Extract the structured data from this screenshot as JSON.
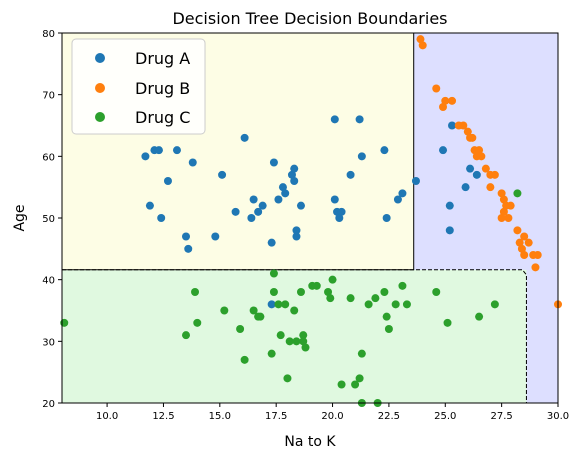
{
  "chart_data": {
    "type": "scatter",
    "title": "Decision Tree Decision Boundaries",
    "xlabel": "Na to K",
    "ylabel": "Age",
    "xlim": [
      8,
      30
    ],
    "ylim": [
      20,
      80
    ],
    "xticks": [
      "10.0",
      "12.5",
      "15.0",
      "17.5",
      "20.0",
      "22.5",
      "25.0",
      "27.5",
      "30.0"
    ],
    "yticks": [
      "20",
      "30",
      "40",
      "50",
      "60",
      "70",
      "80"
    ],
    "legend_position": "top-left",
    "regions": [
      {
        "label": "Drug A region",
        "color": "#dddfff",
        "x": [
          8,
          30
        ],
        "y": [
          20,
          80
        ]
      },
      {
        "label": "Drug C region",
        "color": "#e0f9e0",
        "x": [
          8,
          28.6
        ],
        "y": [
          20,
          41.6
        ]
      },
      {
        "label": "Drug B region",
        "color": "#fdfde5",
        "x": [
          8,
          23.6
        ],
        "y": [
          41.6,
          80
        ]
      }
    ],
    "series": [
      {
        "name": "Drug A",
        "color": "#1f77b4",
        "points": [
          [
            11.7,
            60
          ],
          [
            11.9,
            52
          ],
          [
            12.1,
            61
          ],
          [
            12.3,
            61
          ],
          [
            12.4,
            50
          ],
          [
            12.7,
            56
          ],
          [
            13.1,
            61
          ],
          [
            13.5,
            47
          ],
          [
            13.6,
            45
          ],
          [
            13.8,
            59
          ],
          [
            14.8,
            47
          ],
          [
            15.1,
            57
          ],
          [
            15.7,
            51
          ],
          [
            16.1,
            63
          ],
          [
            16.4,
            50
          ],
          [
            16.5,
            53
          ],
          [
            16.7,
            51
          ],
          [
            16.9,
            52
          ],
          [
            17.3,
            46
          ],
          [
            17.4,
            59
          ],
          [
            17.6,
            53
          ],
          [
            17.8,
            55
          ],
          [
            17.9,
            54
          ],
          [
            18.2,
            57
          ],
          [
            18.3,
            56
          ],
          [
            18.3,
            58
          ],
          [
            18.4,
            47
          ],
          [
            18.4,
            48
          ],
          [
            18.6,
            52
          ],
          [
            20.1,
            66
          ],
          [
            20.1,
            53
          ],
          [
            20.2,
            51
          ],
          [
            20.3,
            50
          ],
          [
            20.4,
            51
          ],
          [
            20.8,
            57
          ],
          [
            21.2,
            66
          ],
          [
            21.3,
            60
          ],
          [
            22.3,
            61
          ],
          [
            22.4,
            50
          ],
          [
            22.9,
            53
          ],
          [
            23.1,
            54
          ],
          [
            23.7,
            56
          ],
          [
            24.9,
            61
          ],
          [
            25.2,
            48
          ],
          [
            25.2,
            52
          ],
          [
            25.3,
            65
          ],
          [
            25.9,
            55
          ],
          [
            26.1,
            58
          ],
          [
            26.4,
            57
          ],
          [
            17.3,
            36
          ]
        ]
      },
      {
        "name": "Drug B",
        "color": "#ff7f0e",
        "points": [
          [
            23.9,
            79
          ],
          [
            24.0,
            78
          ],
          [
            24.6,
            71
          ],
          [
            24.9,
            68
          ],
          [
            25.0,
            69
          ],
          [
            25.3,
            69
          ],
          [
            25.6,
            65
          ],
          [
            25.8,
            65
          ],
          [
            26.0,
            64
          ],
          [
            26.1,
            63
          ],
          [
            26.2,
            63
          ],
          [
            26.3,
            61
          ],
          [
            26.4,
            60
          ],
          [
            26.5,
            61
          ],
          [
            26.6,
            60
          ],
          [
            26.8,
            58
          ],
          [
            27.0,
            57
          ],
          [
            27.0,
            55
          ],
          [
            27.2,
            57
          ],
          [
            27.5,
            54
          ],
          [
            27.6,
            53
          ],
          [
            27.5,
            50
          ],
          [
            27.6,
            51
          ],
          [
            27.7,
            52
          ],
          [
            27.8,
            50
          ],
          [
            27.9,
            52
          ],
          [
            28.2,
            48
          ],
          [
            28.3,
            46
          ],
          [
            28.4,
            45
          ],
          [
            28.5,
            44
          ],
          [
            28.5,
            47
          ],
          [
            28.7,
            46
          ],
          [
            28.9,
            44
          ],
          [
            29.0,
            42
          ],
          [
            29.1,
            44
          ],
          [
            30.0,
            36
          ]
        ]
      },
      {
        "name": "Drug C",
        "color": "#2ca02c",
        "points": [
          [
            8.1,
            33
          ],
          [
            13.5,
            31
          ],
          [
            13.9,
            38
          ],
          [
            14.0,
            33
          ],
          [
            15.2,
            35
          ],
          [
            15.9,
            32
          ],
          [
            16.1,
            27
          ],
          [
            16.5,
            35
          ],
          [
            16.7,
            34
          ],
          [
            16.8,
            34
          ],
          [
            17.3,
            28
          ],
          [
            17.4,
            41
          ],
          [
            17.4,
            38
          ],
          [
            17.6,
            36
          ],
          [
            17.7,
            31
          ],
          [
            17.9,
            36
          ],
          [
            18.0,
            24
          ],
          [
            18.1,
            30
          ],
          [
            18.3,
            35
          ],
          [
            18.4,
            30
          ],
          [
            18.6,
            38
          ],
          [
            18.7,
            31
          ],
          [
            18.7,
            30
          ],
          [
            18.8,
            29
          ],
          [
            19.1,
            39
          ],
          [
            19.3,
            39
          ],
          [
            19.8,
            38
          ],
          [
            19.9,
            37
          ],
          [
            20.0,
            40
          ],
          [
            20.4,
            23
          ],
          [
            20.8,
            37
          ],
          [
            21.0,
            23
          ],
          [
            21.2,
            24
          ],
          [
            21.3,
            20
          ],
          [
            21.3,
            28
          ],
          [
            21.6,
            36
          ],
          [
            21.9,
            37
          ],
          [
            22.0,
            20
          ],
          [
            22.3,
            38
          ],
          [
            22.4,
            34
          ],
          [
            22.5,
            32
          ],
          [
            22.8,
            36
          ],
          [
            23.1,
            39
          ],
          [
            23.3,
            36
          ],
          [
            24.6,
            38
          ],
          [
            25.1,
            33
          ],
          [
            26.5,
            34
          ],
          [
            27.2,
            36
          ],
          [
            28.2,
            54
          ]
        ]
      }
    ]
  }
}
